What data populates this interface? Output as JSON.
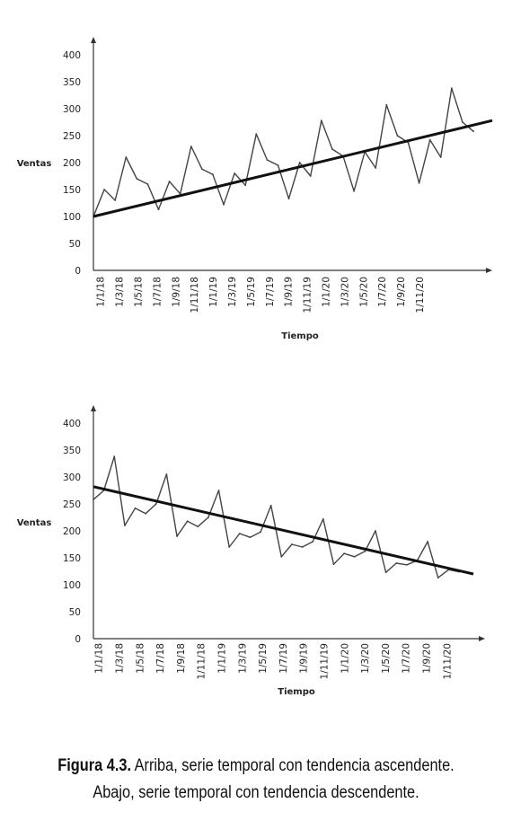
{
  "chart_data": [
    {
      "type": "line",
      "xlabel": "Tiempo",
      "ylabel": "Ventas",
      "ylim": [
        0,
        400
      ],
      "y_ticks": [
        0,
        50,
        100,
        150,
        200,
        250,
        300,
        350,
        400
      ],
      "x_tick_labels": [
        "1/1/18",
        "1/3/18",
        "1/5/18",
        "1/7/18",
        "1/9/18",
        "1/11/18",
        "1/1/19",
        "1/3/19",
        "1/5/19",
        "1/7/19",
        "1/9/19",
        "1/11/19",
        "1/1/20",
        "1/3/20",
        "1/5/20",
        "1/7/20",
        "1/9/20",
        "1/11/20"
      ],
      "grid": false,
      "series": [
        {
          "values": [
            100,
            150,
            130,
            210,
            170,
            160,
            113,
            165,
            142,
            230,
            188,
            178,
            122,
            180,
            158,
            253,
            205,
            195,
            133,
            200,
            175,
            278,
            225,
            212,
            147,
            220,
            190,
            307,
            250,
            237,
            162,
            242,
            210,
            338,
            275,
            258
          ]
        }
      ],
      "trend": {
        "start": 100,
        "end": 278
      }
    },
    {
      "type": "line",
      "xlabel": "Tiempo",
      "ylabel": "Ventas",
      "ylim": [
        0,
        400
      ],
      "y_ticks": [
        0,
        50,
        100,
        150,
        200,
        250,
        300,
        350,
        400
      ],
      "x_tick_labels": [
        "1/1/18",
        "1/3/18",
        "1/5/18",
        "1/7/18",
        "1/9/18",
        "1/11/18",
        "1/1/19",
        "1/3/19",
        "1/5/19",
        "1/7/19",
        "1/9/19",
        "1/11/19",
        "1/1/20",
        "1/3/20",
        "1/5/20",
        "1/7/20",
        "1/9/20",
        "1/11/20"
      ],
      "grid": false,
      "series": [
        {
          "values": [
            258,
            275,
            338,
            210,
            242,
            232,
            250,
            305,
            190,
            218,
            208,
            225,
            275,
            170,
            195,
            188,
            198,
            247,
            152,
            175,
            170,
            180,
            222,
            138,
            158,
            152,
            162,
            200,
            123,
            140,
            137,
            145,
            180,
            113,
            128,
            124
          ]
        }
      ],
      "trend": {
        "start": 282,
        "end": 120
      }
    }
  ],
  "caption": {
    "label": "Figura 4.3.",
    "line1": "Arriba, serie temporal con tendencia ascendente.",
    "line2": "Abajo, serie temporal con tendencia descendente."
  }
}
